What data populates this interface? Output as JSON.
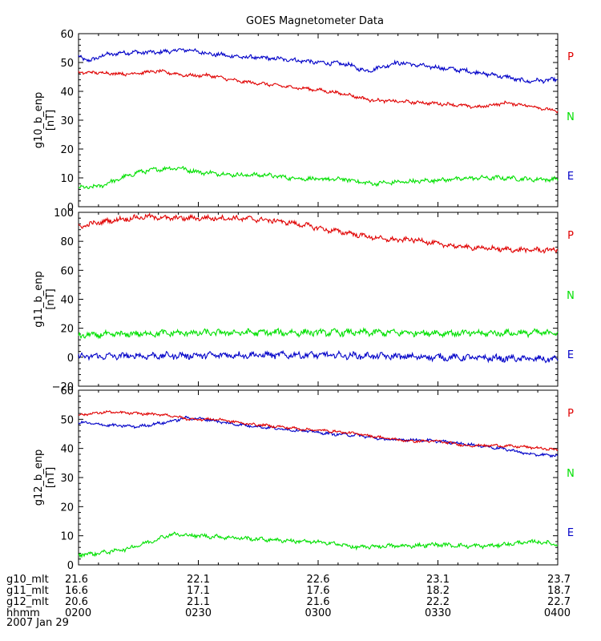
{
  "chart_data": {
    "type": "line",
    "title": "GOES Magnetometer Data",
    "date_label": "2007 Jan 29",
    "x_range": [
      "0200",
      "0400"
    ],
    "x_ticks": [
      "0200",
      "0230",
      "0300",
      "0330",
      "0400"
    ],
    "x_tick_minutes": [
      0,
      30,
      60,
      90,
      120
    ],
    "footer_rows": [
      {
        "label": "g10_mlt",
        "values": [
          "21.6",
          "22.1",
          "22.6",
          "23.1",
          "23.7"
        ]
      },
      {
        "label": "g11_mlt",
        "values": [
          "16.6",
          "17.1",
          "17.6",
          "18.2",
          "18.7"
        ]
      },
      {
        "label": "g12_mlt",
        "values": [
          "20.6",
          "21.1",
          "21.6",
          "22.2",
          "22.7"
        ]
      },
      {
        "label": "hhmm",
        "values": [
          "0200",
          "0230",
          "0300",
          "0330",
          "0400"
        ]
      }
    ],
    "colors": {
      "P": "#e00000",
      "N": "#00e000",
      "E": "#0000c8"
    },
    "panels": [
      {
        "ylabel": "g10_b_enp",
        "units": "[nT]",
        "ylim": [
          0,
          60
        ],
        "yticks": [
          0,
          10,
          20,
          30,
          40,
          50,
          60
        ],
        "ytick_labels": [
          "0",
          "10",
          "20",
          "30",
          "40",
          "50",
          "60"
        ],
        "legend": [
          "P",
          "N",
          "E"
        ],
        "series": [
          {
            "name": "E",
            "color": "#0000c8",
            "noise": 0.6,
            "minutes": [
              0,
              3,
              6,
              12,
              20,
              27,
              33,
              40,
              47,
              53,
              60,
              67,
              72,
              80,
              88,
              95,
              100,
              107,
              112,
              120
            ],
            "values": [
              52,
              50.5,
              52.5,
              53.5,
              53.5,
              54.5,
              53,
              52,
              51.5,
              51,
              50,
              49.5,
              47,
              50,
              48.5,
              47.5,
              46.5,
              45,
              43.5,
              44
            ]
          },
          {
            "name": "P",
            "color": "#e00000",
            "noise": 0.45,
            "minutes": [
              0,
              5,
              12,
              20,
              27,
              33,
              40,
              47,
              53,
              60,
              67,
              73,
              80,
              87,
              93,
              100,
              107,
              113,
              120
            ],
            "values": [
              46.5,
              46.5,
              46,
              47,
              45.5,
              45.5,
              43.5,
              42.5,
              41.5,
              40.5,
              39,
              37,
              36.5,
              36,
              35.5,
              34.5,
              36,
              35,
              33
            ]
          },
          {
            "name": "N",
            "color": "#00e000",
            "noise": 0.6,
            "minutes": [
              0,
              5,
              10,
              15,
              20,
              25,
              30,
              35,
              40,
              47,
              53,
              60,
              67,
              73,
              80,
              87,
              93,
              100,
              107,
              113,
              120
            ],
            "values": [
              6.5,
              7,
              9.5,
              12,
              13,
              13.5,
              12,
              11.5,
              11,
              11,
              10,
              9.5,
              9.5,
              8,
              8.5,
              9,
              9.5,
              10,
              10,
              9.5,
              9.5
            ]
          }
        ]
      },
      {
        "ylabel": "g11_b_enp",
        "units": "[nT]",
        "ylim": [
          -20,
          100
        ],
        "yticks": [
          -20,
          0,
          20,
          40,
          60,
          80,
          100
        ],
        "ytick_labels": [
          "−20",
          "0",
          "20",
          "40",
          "60",
          "80",
          "100"
        ],
        "legend": [
          "P",
          "N",
          "E"
        ],
        "series": [
          {
            "name": "P",
            "color": "#e00000",
            "noise": 1.4,
            "minutes": [
              0,
              5,
              10,
              17,
              23,
              30,
              37,
              43,
              50,
              57,
              62,
              67,
              73,
              78,
              85,
              90,
              97,
              103,
              110,
              120
            ],
            "values": [
              90,
              93,
              95,
              97,
              96,
              96,
              96,
              95.5,
              94,
              91,
              88,
              86,
              83,
              81,
              81,
              78,
              76,
              75,
              74,
              74
            ]
          },
          {
            "name": "N",
            "color": "#00e000",
            "noise": 1.8,
            "minutes": [
              0,
              20,
              40,
              60,
              80,
              100,
              120
            ],
            "values": [
              15,
              16.5,
              17,
              17,
              17,
              16.5,
              17
            ]
          },
          {
            "name": "E",
            "color": "#0000c8",
            "noise": 1.8,
            "minutes": [
              0,
              20,
              40,
              60,
              80,
              100,
              120
            ],
            "values": [
              0.5,
              1,
              1.5,
              1.5,
              0.5,
              -0.5,
              -1.5
            ]
          }
        ]
      },
      {
        "ylabel": "g12_b_enp",
        "units": "[nT]",
        "ylim": [
          0,
          60
        ],
        "yticks": [
          0,
          10,
          20,
          30,
          40,
          50,
          60
        ],
        "ytick_labels": [
          "0",
          "10",
          "20",
          "30",
          "40",
          "50",
          "60"
        ],
        "legend": [
          "P",
          "N",
          "E"
        ],
        "series": [
          {
            "name": "P",
            "color": "#e00000",
            "noise": 0.35,
            "minutes": [
              0,
              7,
              15,
              22,
              28,
              35,
              42,
              50,
              57,
              63,
              70,
              77,
              83,
              90,
              97,
              105,
              112,
              120
            ],
            "values": [
              51.5,
              52.5,
              52,
              51.5,
              50,
              50,
              48.5,
              47.5,
              46.5,
              46,
              45,
              43.5,
              42.5,
              42.5,
              41,
              41,
              40.5,
              39.5
            ]
          },
          {
            "name": "E",
            "color": "#0000c8",
            "noise": 0.4,
            "minutes": [
              0,
              7,
              15,
              22,
              27,
              32,
              38,
              45,
              52,
              57,
              63,
              70,
              77,
              83,
              90,
              97,
              103,
              108,
              113,
              120
            ],
            "values": [
              49,
              48,
              47.5,
              49,
              50.5,
              50,
              48.5,
              47.5,
              46.5,
              46,
              45,
              44.5,
              43,
              43,
              42.5,
              41.5,
              40.5,
              39.5,
              38,
              37.5
            ]
          },
          {
            "name": "N",
            "color": "#00e000",
            "noise": 0.55,
            "minutes": [
              0,
              5,
              12,
              18,
              23,
              30,
              37,
              43,
              50,
              57,
              63,
              70,
              77,
              83,
              90,
              97,
              103,
              110,
              115,
              120
            ],
            "values": [
              3.5,
              4,
              5.5,
              8,
              10.5,
              10,
              9.5,
              9,
              8.5,
              8,
              7.5,
              6,
              6.5,
              6.5,
              7,
              6.5,
              6.5,
              7.5,
              8,
              7
            ]
          }
        ]
      }
    ]
  }
}
